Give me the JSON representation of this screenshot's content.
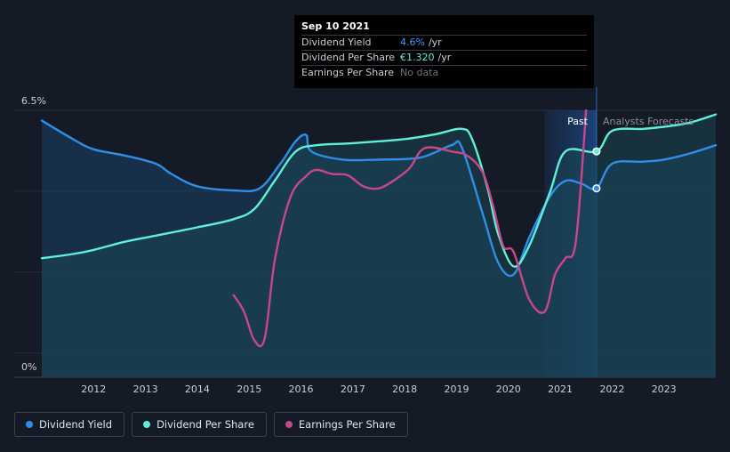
{
  "tooltip": {
    "date": "Sep 10 2021",
    "rows": [
      {
        "label": "Dividend Yield",
        "value": "4.6%",
        "unit": "/yr"
      },
      {
        "label": "Dividend Per Share",
        "value": "€1.320",
        "unit": "/yr"
      },
      {
        "label": "Earnings Per Share",
        "value": "No data",
        "unit": ""
      }
    ]
  },
  "regions": {
    "past_label": "Past",
    "forecast_label": "Analysts Forecasts"
  },
  "legend": [
    {
      "label": "Dividend Yield",
      "color": "#2d8fe8"
    },
    {
      "label": "Dividend Per Share",
      "color": "#5ef0d8"
    },
    {
      "label": "Earnings Per Share",
      "color": "#c8478b"
    }
  ],
  "chart_data": {
    "type": "line",
    "x_ticks": [
      2012,
      2013,
      2014,
      2015,
      2016,
      2017,
      2018,
      2019,
      2020,
      2021,
      2022,
      2023
    ],
    "y_tick_labels": [
      "6.5%",
      "0%"
    ],
    "ylim": [
      0,
      6.5
    ],
    "xlim": [
      2011.0,
      2024.0
    ],
    "highlight_range": [
      2020.7,
      2021.7
    ],
    "past_until": 2021.7,
    "grid": true,
    "legend_position": "bottom-left",
    "series": [
      {
        "name": "Dividend Yield",
        "color": "#2d8fe8",
        "fill": true,
        "points": [
          [
            2011.0,
            6.25
          ],
          [
            2011.6,
            5.8
          ],
          [
            2012.0,
            5.55
          ],
          [
            2012.6,
            5.4
          ],
          [
            2013.2,
            5.2
          ],
          [
            2013.5,
            4.95
          ],
          [
            2014.0,
            4.65
          ],
          [
            2014.7,
            4.55
          ],
          [
            2015.2,
            4.6
          ],
          [
            2015.6,
            5.2
          ],
          [
            2015.9,
            5.75
          ],
          [
            2016.1,
            5.9
          ],
          [
            2016.2,
            5.5
          ],
          [
            2016.8,
            5.3
          ],
          [
            2017.5,
            5.3
          ],
          [
            2018.3,
            5.35
          ],
          [
            2018.9,
            5.65
          ],
          [
            2019.1,
            5.6
          ],
          [
            2019.5,
            4.0
          ],
          [
            2019.8,
            2.8
          ],
          [
            2020.1,
            2.5
          ],
          [
            2020.4,
            3.4
          ],
          [
            2020.8,
            4.4
          ],
          [
            2021.1,
            4.78
          ],
          [
            2021.4,
            4.72
          ],
          [
            2021.7,
            4.6
          ],
          [
            2022.0,
            5.2
          ],
          [
            2022.6,
            5.25
          ],
          [
            2023.0,
            5.3
          ],
          [
            2023.5,
            5.45
          ],
          [
            2024.0,
            5.65
          ]
        ]
      },
      {
        "name": "Dividend Per Share",
        "color": "#5ef0d8",
        "fill": true,
        "points": [
          [
            2011.0,
            2.9
          ],
          [
            2011.6,
            3.0
          ],
          [
            2012.0,
            3.1
          ],
          [
            2012.6,
            3.3
          ],
          [
            2013.2,
            3.45
          ],
          [
            2014.0,
            3.65
          ],
          [
            2014.7,
            3.85
          ],
          [
            2015.1,
            4.1
          ],
          [
            2015.5,
            4.8
          ],
          [
            2015.9,
            5.5
          ],
          [
            2016.3,
            5.65
          ],
          [
            2017.0,
            5.7
          ],
          [
            2018.0,
            5.8
          ],
          [
            2018.6,
            5.92
          ],
          [
            2019.1,
            6.05
          ],
          [
            2019.3,
            5.8
          ],
          [
            2019.6,
            4.6
          ],
          [
            2019.8,
            3.5
          ],
          [
            2020.1,
            2.7
          ],
          [
            2020.4,
            3.2
          ],
          [
            2020.8,
            4.5
          ],
          [
            2021.1,
            5.5
          ],
          [
            2021.7,
            5.5
          ],
          [
            2022.0,
            6.0
          ],
          [
            2022.6,
            6.05
          ],
          [
            2023.0,
            6.1
          ],
          [
            2023.5,
            6.2
          ],
          [
            2024.0,
            6.4
          ]
        ]
      },
      {
        "name": "Earnings Per Share",
        "color": "#c8478b",
        "fill": false,
        "points": [
          [
            2014.7,
            2.0
          ],
          [
            2014.9,
            1.6
          ],
          [
            2015.1,
            0.9
          ],
          [
            2015.3,
            0.95
          ],
          [
            2015.5,
            2.9
          ],
          [
            2015.8,
            4.4
          ],
          [
            2016.1,
            4.9
          ],
          [
            2016.3,
            5.05
          ],
          [
            2016.6,
            4.95
          ],
          [
            2016.9,
            4.92
          ],
          [
            2017.2,
            4.65
          ],
          [
            2017.5,
            4.6
          ],
          [
            2017.8,
            4.8
          ],
          [
            2018.1,
            5.1
          ],
          [
            2018.3,
            5.5
          ],
          [
            2018.5,
            5.6
          ],
          [
            2018.9,
            5.5
          ],
          [
            2019.2,
            5.4
          ],
          [
            2019.5,
            5.0
          ],
          [
            2019.7,
            4.2
          ],
          [
            2019.9,
            3.2
          ],
          [
            2020.1,
            3.05
          ],
          [
            2020.4,
            1.9
          ],
          [
            2020.7,
            1.6
          ],
          [
            2020.9,
            2.5
          ],
          [
            2021.1,
            2.9
          ],
          [
            2021.3,
            3.3
          ],
          [
            2021.5,
            6.5
          ]
        ]
      }
    ],
    "markers": [
      {
        "series": "Dividend Yield",
        "x": 2021.7,
        "y": 4.6
      },
      {
        "series": "Dividend Per Share",
        "x": 2021.7,
        "y": 5.5
      }
    ]
  }
}
